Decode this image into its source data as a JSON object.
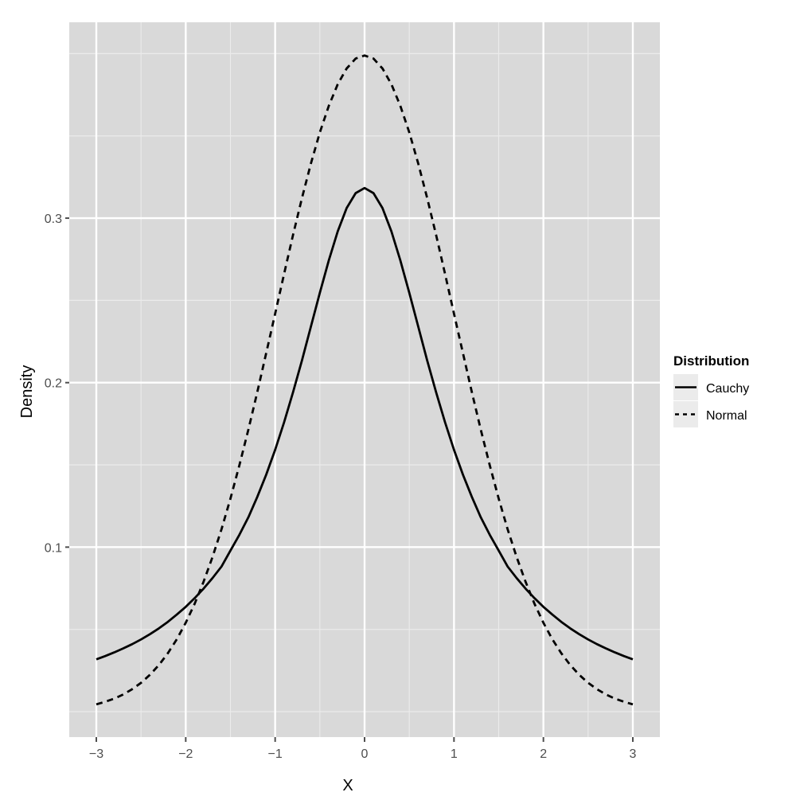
{
  "chart_data": {
    "type": "line",
    "title": "",
    "xlabel": "X",
    "ylabel": "Density",
    "xlim": [
      -3.3,
      3.3
    ],
    "ylim": [
      -0.015,
      0.41
    ],
    "x_ticks": [
      -3,
      -2,
      -1,
      0,
      1,
      2,
      3
    ],
    "x_tick_labels": [
      "−3",
      "−2",
      "−1",
      "0",
      "1",
      "2",
      "3"
    ],
    "y_ticks": [
      0.1,
      0.2,
      0.3
    ],
    "y_tick_labels": [
      "0.1",
      "0.2",
      "0.3"
    ],
    "y_minor_gridlines": [
      0.0,
      0.05,
      0.15,
      0.25,
      0.35,
      0.4
    ],
    "x_minor_gridlines": [
      -2.5,
      -1.5,
      -0.5,
      0.5,
      1.5,
      2.5
    ],
    "grid": true,
    "legend_position": "right",
    "legend_title": "Distribution",
    "x": [
      -3.0,
      -2.9,
      -2.8,
      -2.7,
      -2.6,
      -2.5,
      -2.4,
      -2.3,
      -2.2,
      -2.1,
      -2.0,
      -1.9,
      -1.8,
      -1.7,
      -1.6,
      -1.5,
      -1.4,
      -1.3,
      -1.2,
      -1.1,
      -1.0,
      -0.9,
      -0.8,
      -0.7,
      -0.6,
      -0.5,
      -0.4,
      -0.3,
      -0.2,
      -0.1,
      0.0,
      0.1,
      0.2,
      0.3,
      0.4,
      0.5,
      0.6,
      0.7,
      0.8,
      0.9,
      1.0,
      1.1,
      1.2,
      1.3,
      1.4,
      1.5,
      1.6,
      1.7,
      1.8,
      1.9,
      2.0,
      2.1,
      2.2,
      2.3,
      2.4,
      2.5,
      2.6,
      2.7,
      2.8,
      2.9,
      3.0
    ],
    "series": [
      {
        "name": "Cauchy",
        "linetype": "solid",
        "values": [
          0.0318,
          0.0338,
          0.036,
          0.0384,
          0.041,
          0.0439,
          0.0471,
          0.0506,
          0.0546,
          0.059,
          0.0637,
          0.069,
          0.0748,
          0.0812,
          0.0882,
          0.0979,
          0.1075,
          0.1181,
          0.1305,
          0.144,
          0.1592,
          0.1759,
          0.1941,
          0.2136,
          0.2341,
          0.2546,
          0.2744,
          0.292,
          0.3061,
          0.3152,
          0.3183,
          0.3152,
          0.3061,
          0.292,
          0.2744,
          0.2546,
          0.2341,
          0.2136,
          0.1941,
          0.1759,
          0.1592,
          0.144,
          0.1305,
          0.1181,
          0.1075,
          0.0979,
          0.0882,
          0.0812,
          0.0748,
          0.069,
          0.0637,
          0.059,
          0.0546,
          0.0506,
          0.0471,
          0.0439,
          0.041,
          0.0384,
          0.036,
          0.0338,
          0.0318
        ]
      },
      {
        "name": "Normal",
        "linetype": "dashed",
        "values": [
          0.0044,
          0.006,
          0.0079,
          0.0104,
          0.0136,
          0.0175,
          0.0224,
          0.0283,
          0.0355,
          0.044,
          0.054,
          0.0656,
          0.079,
          0.094,
          0.1109,
          0.1295,
          0.1497,
          0.1714,
          0.1942,
          0.2179,
          0.242,
          0.2661,
          0.2897,
          0.3123,
          0.3332,
          0.3521,
          0.3683,
          0.3814,
          0.391,
          0.397,
          0.3989,
          0.397,
          0.391,
          0.3814,
          0.3683,
          0.3521,
          0.3332,
          0.3123,
          0.2897,
          0.2661,
          0.242,
          0.2179,
          0.1942,
          0.1714,
          0.1497,
          0.1295,
          0.1109,
          0.094,
          0.079,
          0.0656,
          0.054,
          0.044,
          0.0355,
          0.0283,
          0.0224,
          0.0175,
          0.0136,
          0.0104,
          0.0079,
          0.006,
          0.0044
        ]
      }
    ]
  },
  "style": {
    "panel_bg": "#d9d9d9",
    "major_grid": "#ffffff",
    "minor_grid": "#ebebeb",
    "line_color": "#000000",
    "legend_key_bg": "#ebebeb",
    "tick_color": "#4d4d4d"
  }
}
